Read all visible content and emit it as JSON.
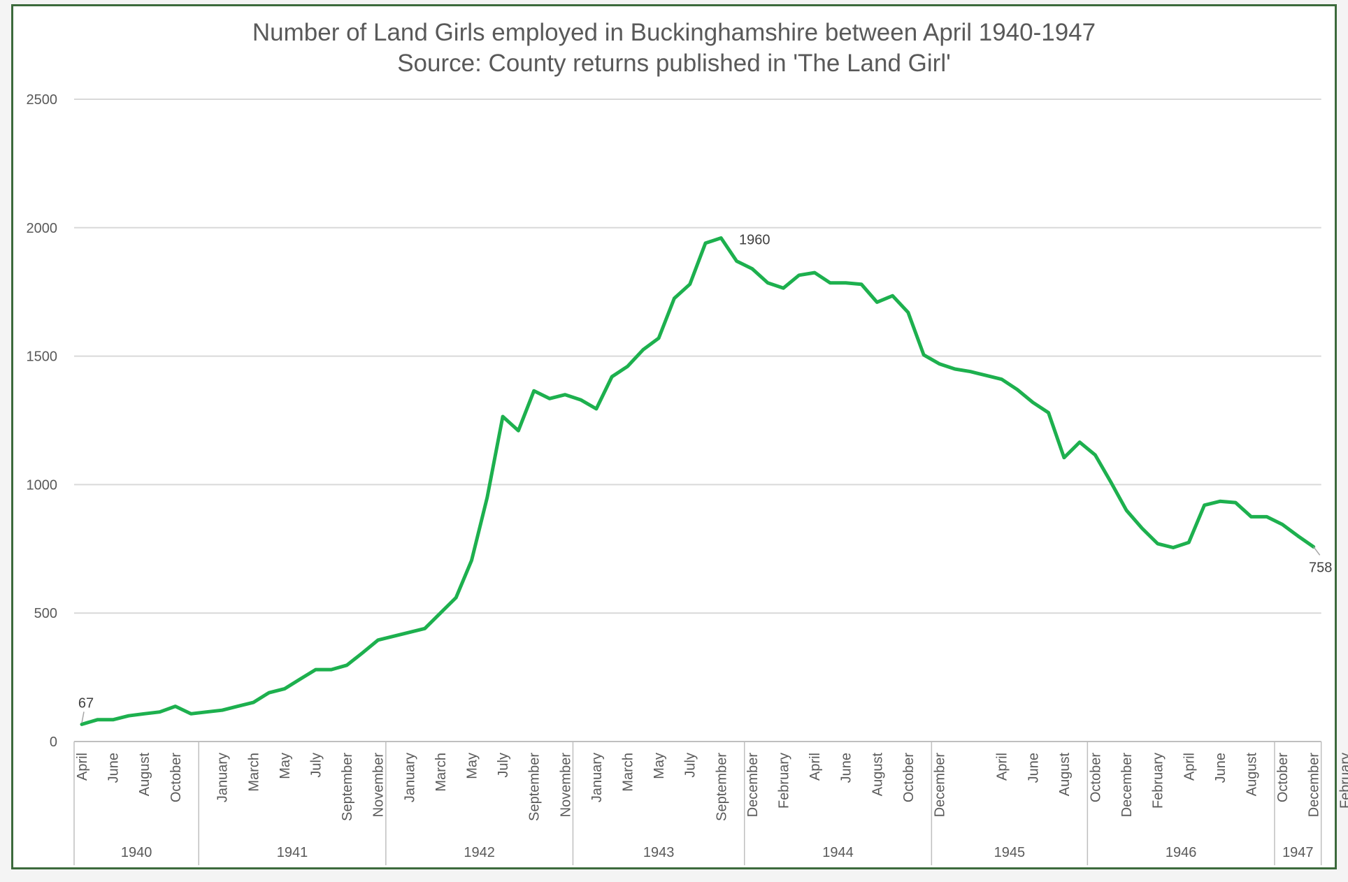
{
  "chart_data": {
    "type": "line",
    "title": "Number of Land Girls employed in Buckinghamshire between April 1940-1947",
    "subtitle": "Source: County returns published in 'The Land Girl'",
    "xlabel": "",
    "ylabel": "",
    "ylim": [
      0,
      2500
    ],
    "yticks": [
      0,
      500,
      1000,
      1500,
      2000,
      2500
    ],
    "grid": true,
    "legend": "none",
    "colors": {
      "line": "#1db04e",
      "grid": "#d9d9d9",
      "axis_text": "#595959"
    },
    "x_month_labels": [
      "April",
      "June",
      "August",
      "October",
      "January",
      "March",
      "May",
      "July",
      "September",
      "November",
      "January",
      "March",
      "May",
      "July",
      "September",
      "November",
      "January",
      "March",
      "May",
      "July",
      "September",
      "December",
      "February",
      "April",
      "June",
      "August",
      "October",
      "December",
      "April",
      "June",
      "August",
      "October",
      "December",
      "February",
      "April",
      "June",
      "August",
      "October",
      "December",
      "February"
    ],
    "x_label_idx": [
      0,
      2,
      4,
      6,
      9,
      11,
      13,
      15,
      17,
      19,
      21,
      23,
      25,
      27,
      29,
      31,
      33,
      35,
      37,
      39,
      41,
      43,
      45,
      47,
      49,
      51,
      53,
      55,
      59,
      61,
      63,
      65,
      67,
      69,
      71,
      73,
      75,
      77,
      79,
      81
    ],
    "years": [
      {
        "label": "1940",
        "start": 0,
        "end": 8
      },
      {
        "label": "1941",
        "start": 8,
        "end": 20
      },
      {
        "label": "1942",
        "start": 20,
        "end": 32
      },
      {
        "label": "1943",
        "start": 32,
        "end": 43
      },
      {
        "label": "1944",
        "start": 43,
        "end": 55
      },
      {
        "label": "1945",
        "start": 55,
        "end": 65
      },
      {
        "label": "1946",
        "start": 65,
        "end": 77
      },
      {
        "label": "1947",
        "start": 77,
        "end": 81
      }
    ],
    "series": [
      {
        "values": [
          67,
          85,
          85,
          100,
          108,
          115,
          137,
          108,
          115,
          122,
          137,
          152,
          190,
          205,
          243,
          280,
          280,
          297,
          345,
          395,
          410,
          425,
          440,
          500,
          560,
          705,
          950,
          1265,
          1210,
          1365,
          1335,
          1350,
          1330,
          1295,
          1420,
          1460,
          1525,
          1570,
          1725,
          1780,
          1940,
          1960,
          1870,
          1840,
          1785,
          1765,
          1815,
          1825,
          1785,
          1785,
          1780,
          1710,
          1735,
          1670,
          1505,
          1470,
          1450,
          1440,
          1425,
          1410,
          1370,
          1320,
          1280,
          1105,
          1165,
          1115,
          1010,
          900,
          830,
          770,
          755,
          775,
          920,
          935,
          930,
          875,
          875,
          845,
          800,
          758
        ]
      }
    ],
    "annotations": [
      {
        "text": "67",
        "index": 0
      },
      {
        "text": "1960",
        "index": 41
      },
      {
        "text": "758",
        "index": 79
      }
    ]
  }
}
